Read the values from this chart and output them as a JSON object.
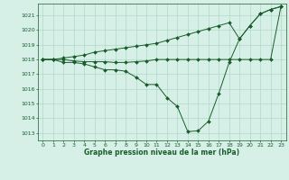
{
  "title": "Graphe pression niveau de la mer (hPa)",
  "bg_color": "#d6f0e8",
  "grid_color": "#b0d8c8",
  "line_color": "#1a5c2a",
  "xlim": [
    -0.5,
    23.5
  ],
  "ylim": [
    1012.5,
    1021.8
  ],
  "yticks": [
    1013,
    1014,
    1015,
    1016,
    1017,
    1018,
    1019,
    1020,
    1021
  ],
  "xticks": [
    0,
    1,
    2,
    3,
    4,
    5,
    6,
    7,
    8,
    9,
    10,
    11,
    12,
    13,
    14,
    15,
    16,
    17,
    18,
    19,
    20,
    21,
    22,
    23
  ],
  "series1_x": [
    0,
    1,
    2,
    3,
    4,
    5,
    6,
    7,
    8,
    9,
    10,
    11,
    12,
    13,
    14,
    15,
    16,
    17,
    18,
    19,
    20,
    21,
    22,
    23
  ],
  "series1_y": [
    1018.0,
    1018.0,
    1017.8,
    1017.8,
    1017.7,
    1017.5,
    1017.3,
    1017.3,
    1017.2,
    1016.8,
    1016.3,
    1016.3,
    1015.4,
    1014.8,
    1013.1,
    1013.15,
    1013.8,
    1015.7,
    1017.8,
    1019.4,
    1020.3,
    1021.1,
    1021.4,
    1021.6
  ],
  "series2_x": [
    0,
    1,
    2,
    3,
    4,
    5,
    6,
    7,
    8,
    9,
    10,
    11,
    12,
    13,
    14,
    15,
    16,
    17,
    18,
    19,
    20,
    21,
    22,
    23
  ],
  "series2_y": [
    1018.0,
    1018.0,
    1018.0,
    1017.9,
    1017.85,
    1017.85,
    1017.85,
    1017.8,
    1017.8,
    1017.85,
    1017.9,
    1018.0,
    1018.0,
    1018.0,
    1018.0,
    1018.0,
    1018.0,
    1018.0,
    1018.0,
    1018.0,
    1018.0,
    1018.0,
    1018.0,
    1021.6
  ],
  "series3_x": [
    0,
    1,
    2,
    3,
    4,
    5,
    6,
    7,
    8,
    9,
    10,
    11,
    12,
    13,
    14,
    15,
    16,
    17,
    18,
    19,
    20,
    21,
    22,
    23
  ],
  "series3_y": [
    1018.0,
    1018.0,
    1018.1,
    1018.2,
    1018.3,
    1018.5,
    1018.6,
    1018.7,
    1018.8,
    1018.9,
    1019.0,
    1019.1,
    1019.3,
    1019.5,
    1019.7,
    1019.9,
    1020.1,
    1020.3,
    1020.5,
    1019.4,
    1020.3,
    1021.1,
    1021.4,
    1021.6
  ]
}
